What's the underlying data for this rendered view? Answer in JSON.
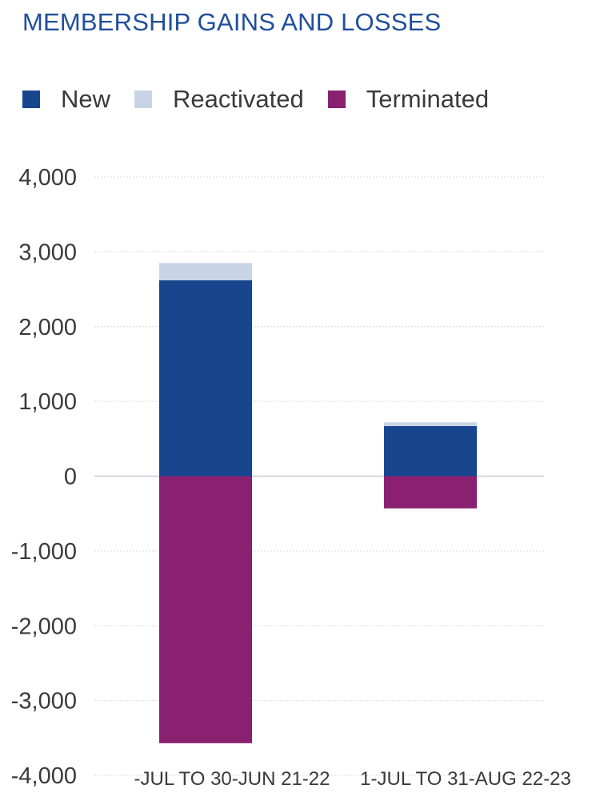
{
  "chart_data": {
    "type": "bar",
    "stacked": true,
    "title": "MEMBERSHIP GAINS AND LOSSES",
    "categories": [
      "-JUL TO 30-JUN 21-22",
      "1-JUL TO 31-AUG 22-23"
    ],
    "series": [
      {
        "name": "New",
        "color": "#17468f",
        "values": [
          2620,
          670
        ]
      },
      {
        "name": "Reactivated",
        "color": "#c8d4e6",
        "values": [
          230,
          50
        ]
      },
      {
        "name": "Terminated",
        "color": "#8a2170",
        "values": [
          -3570,
          -430
        ]
      }
    ],
    "ylim": [
      -4000,
      4000
    ],
    "yticks": [
      4000,
      3000,
      2000,
      1000,
      0,
      -1000,
      -2000,
      -3000,
      -4000
    ],
    "ytick_labels": [
      "4,000",
      "3,000",
      "2,000",
      "1,000",
      "0",
      "-1,000",
      "-2,000",
      "-3,000",
      "-4,000"
    ],
    "grid": true,
    "legend_position": "top-left",
    "xlabel": "",
    "ylabel": ""
  }
}
